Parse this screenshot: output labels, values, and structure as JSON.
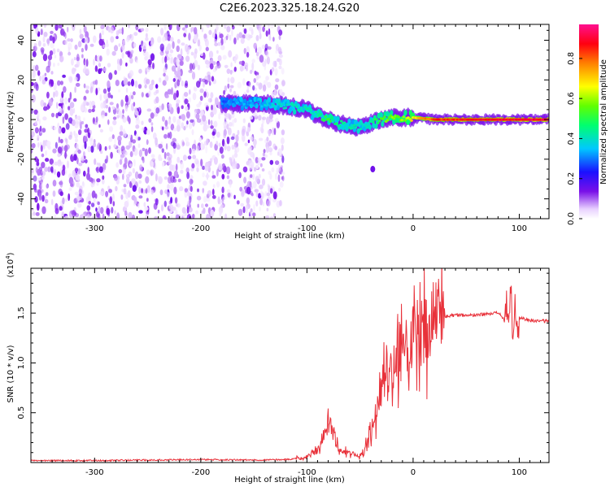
{
  "figure_title": "C2E6.2023.325.18.24.G20",
  "chart_data": [
    {
      "type": "heatmap",
      "xlabel": "Height of straight line (km)",
      "ylabel": "Frequency (Hz)",
      "xlim": [
        -360,
        128
      ],
      "ylim": [
        -50,
        48
      ],
      "xticks": [
        -300,
        -200,
        -100,
        0,
        100
      ],
      "yticks": [
        -40,
        -20,
        0,
        20,
        40
      ],
      "colorbar": {
        "label": "Normalized spectral amplitude",
        "range": [
          0.0,
          0.97
        ],
        "ticks": [
          "0.0",
          "0.2",
          "0.4",
          "0.6",
          "0.8"
        ],
        "tick_values": [
          0.0,
          0.2,
          0.4,
          0.6,
          0.8
        ],
        "colormap": "rainbow (white-purple-blue-cyan-green-yellow-red-magenta)"
      },
      "features": {
        "noise_region_x": [
          -360,
          -122
        ],
        "line_trace": [
          {
            "x": -180,
            "f": 8,
            "a": 0.3
          },
          {
            "x": -160,
            "f": 8,
            "a": 0.33
          },
          {
            "x": -140,
            "f": 8,
            "a": 0.36
          },
          {
            "x": -120,
            "f": 7,
            "a": 0.4
          },
          {
            "x": -100,
            "f": 5,
            "a": 0.42
          },
          {
            "x": -90,
            "f": 2,
            "a": 0.45
          },
          {
            "x": -80,
            "f": 0,
            "a": 0.5
          },
          {
            "x": -70,
            "f": -2,
            "a": 0.45
          },
          {
            "x": -60,
            "f": -3,
            "a": 0.42
          },
          {
            "x": -50,
            "f": -4,
            "a": 0.4
          },
          {
            "x": -40,
            "f": -2,
            "a": 0.45
          },
          {
            "x": -30,
            "f": 0,
            "a": 0.55
          },
          {
            "x": -20,
            "f": 1,
            "a": 0.6
          },
          {
            "x": -10,
            "f": 1,
            "a": 0.6
          },
          {
            "x": 0,
            "f": 1,
            "a": 0.7
          },
          {
            "x": 20,
            "f": 0,
            "a": 0.85
          },
          {
            "x": 60,
            "f": 0,
            "a": 0.9
          },
          {
            "x": 100,
            "f": 0,
            "a": 0.92
          },
          {
            "x": 128,
            "f": 0,
            "a": 0.92
          }
        ],
        "isolated_blob": {
          "x": -38,
          "f": -25
        }
      }
    },
    {
      "type": "line",
      "xlabel": "Height of straight line (km)",
      "ylabel": "SNR (10 * v/v)",
      "yscale_note": "(x10^4)",
      "xlim": [
        -360,
        128
      ],
      "ylim": [
        0,
        1.95
      ],
      "xticks": [
        -300,
        -200,
        -100,
        0,
        100
      ],
      "yticks": [
        0.5,
        1.0,
        1.5
      ],
      "ytick_labels": [
        "0.5",
        "1.0",
        "1.5"
      ],
      "series_color": "#e8313a",
      "series": [
        {
          "x": [
            -360,
            -300,
            -250,
            -200,
            -150,
            -120,
            -100,
            -90,
            -85,
            -80,
            -75,
            -70,
            -60,
            -50,
            -45,
            -40,
            -35,
            -30,
            -25,
            -20,
            -15,
            -10,
            -5,
            0,
            10,
            20,
            30,
            40,
            50,
            60,
            70,
            80,
            85,
            88,
            90,
            92,
            94,
            96,
            98,
            100,
            110,
            120,
            128
          ],
          "values": [
            0.02,
            0.02,
            0.025,
            0.03,
            0.025,
            0.03,
            0.05,
            0.12,
            0.25,
            0.4,
            0.3,
            0.12,
            0.1,
            0.06,
            0.15,
            0.3,
            0.5,
            0.75,
            0.85,
            1.0,
            1.05,
            1.05,
            1.15,
            1.25,
            1.35,
            1.45,
            1.47,
            1.48,
            1.48,
            1.48,
            1.49,
            1.5,
            1.45,
            1.65,
            1.4,
            1.8,
            1.1,
            1.7,
            1.3,
            1.45,
            1.43,
            1.42,
            1.42
          ]
        }
      ]
    }
  ]
}
